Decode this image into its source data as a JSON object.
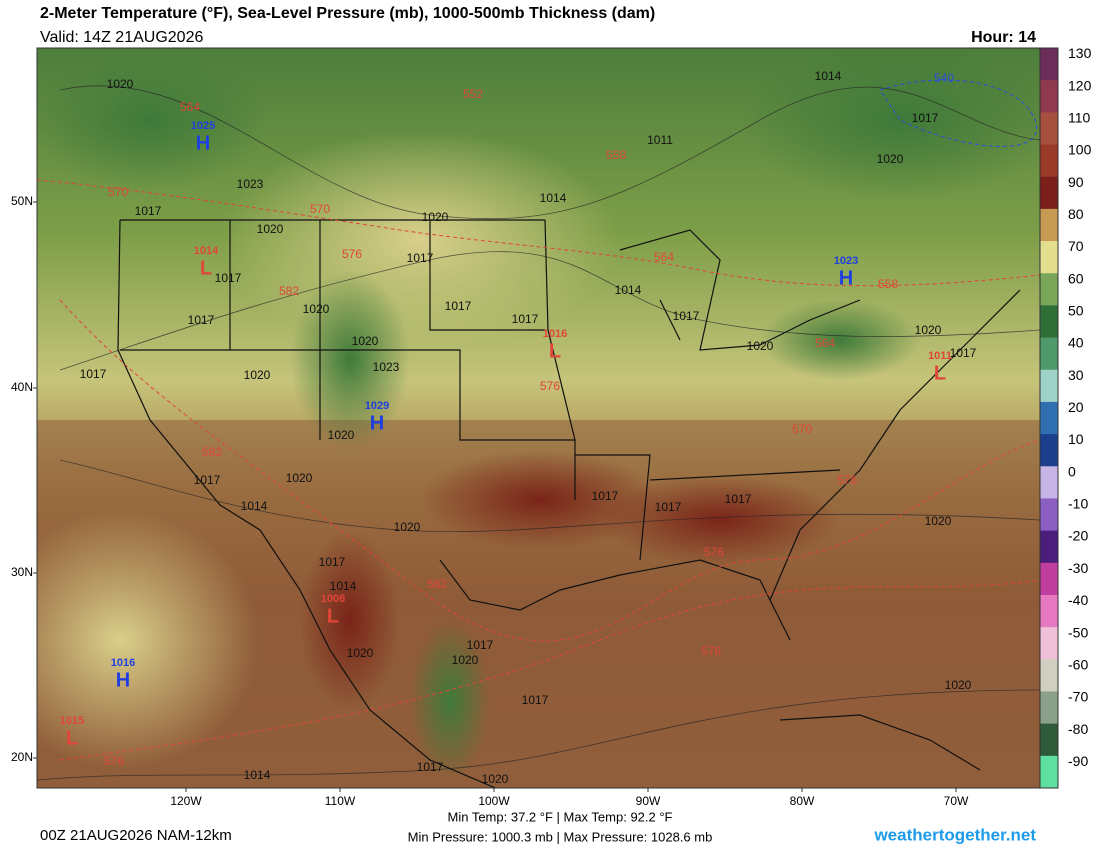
{
  "header": {
    "title": "2-Meter Temperature (°F), Sea-Level Pressure (mb), 1000-500mb Thickness (dam)",
    "valid": "Valid: 14Z 21AUG2026",
    "hour": "Hour: 14"
  },
  "colorbar": {
    "labels": [
      "130",
      "120",
      "110",
      "100",
      "90",
      "80",
      "70",
      "60",
      "50",
      "40",
      "30",
      "20",
      "10",
      "0",
      "-10",
      "-20",
      "-30",
      "-40",
      "-50",
      "-60",
      "-70",
      "-80",
      "-90"
    ]
  },
  "axes": {
    "lat_labels": [
      "50N",
      "40N",
      "30N",
      "20N"
    ],
    "lon_labels": [
      "120W",
      "110W",
      "100W",
      "90W",
      "80W",
      "70W"
    ]
  },
  "pressure_centers": [
    {
      "type": "H",
      "value": "1025"
    },
    {
      "type": "L",
      "value": "1014"
    },
    {
      "type": "H",
      "value": "1029"
    },
    {
      "type": "L",
      "value": "1016"
    },
    {
      "type": "H",
      "value": "1023"
    },
    {
      "type": "L",
      "value": "1011"
    },
    {
      "type": "L",
      "value": "1006"
    },
    {
      "type": "H",
      "value": "1016"
    },
    {
      "type": "L",
      "value": "1015"
    }
  ],
  "isobar_labels": [
    "1020",
    "1014",
    "1017",
    "1011",
    "1020",
    "1023",
    "1017",
    "1014",
    "1020",
    "1020",
    "1017",
    "1017",
    "1014",
    "1017",
    "1020",
    "1017",
    "1017",
    "1017",
    "1020",
    "1020",
    "1020",
    "1017",
    "1017",
    "1023",
    "1020",
    "1020",
    "1020",
    "1017",
    "1017",
    "1017",
    "1017",
    "1014",
    "1020",
    "1020",
    "1017",
    "1014",
    "1020",
    "1017",
    "1020",
    "1017",
    "1020",
    "1014",
    "1017",
    "1020"
  ],
  "thickness_labels": [
    "564",
    "552",
    "558",
    "570",
    "570",
    "576",
    "582",
    "564",
    "558",
    "564",
    "576",
    "570",
    "582",
    "576",
    "576",
    "582",
    "576",
    "576"
  ],
  "thickness_blue_label": "540",
  "footer": {
    "run": "00Z 21AUG2026 NAM-12km",
    "temps": "Min Temp:  37.2 °F | Max Temp:  92.2 °F",
    "pressures": "Min Pressure: 1000.3 mb | Max Pressure: 1028.6 mb",
    "site": "weathertogether.net"
  }
}
